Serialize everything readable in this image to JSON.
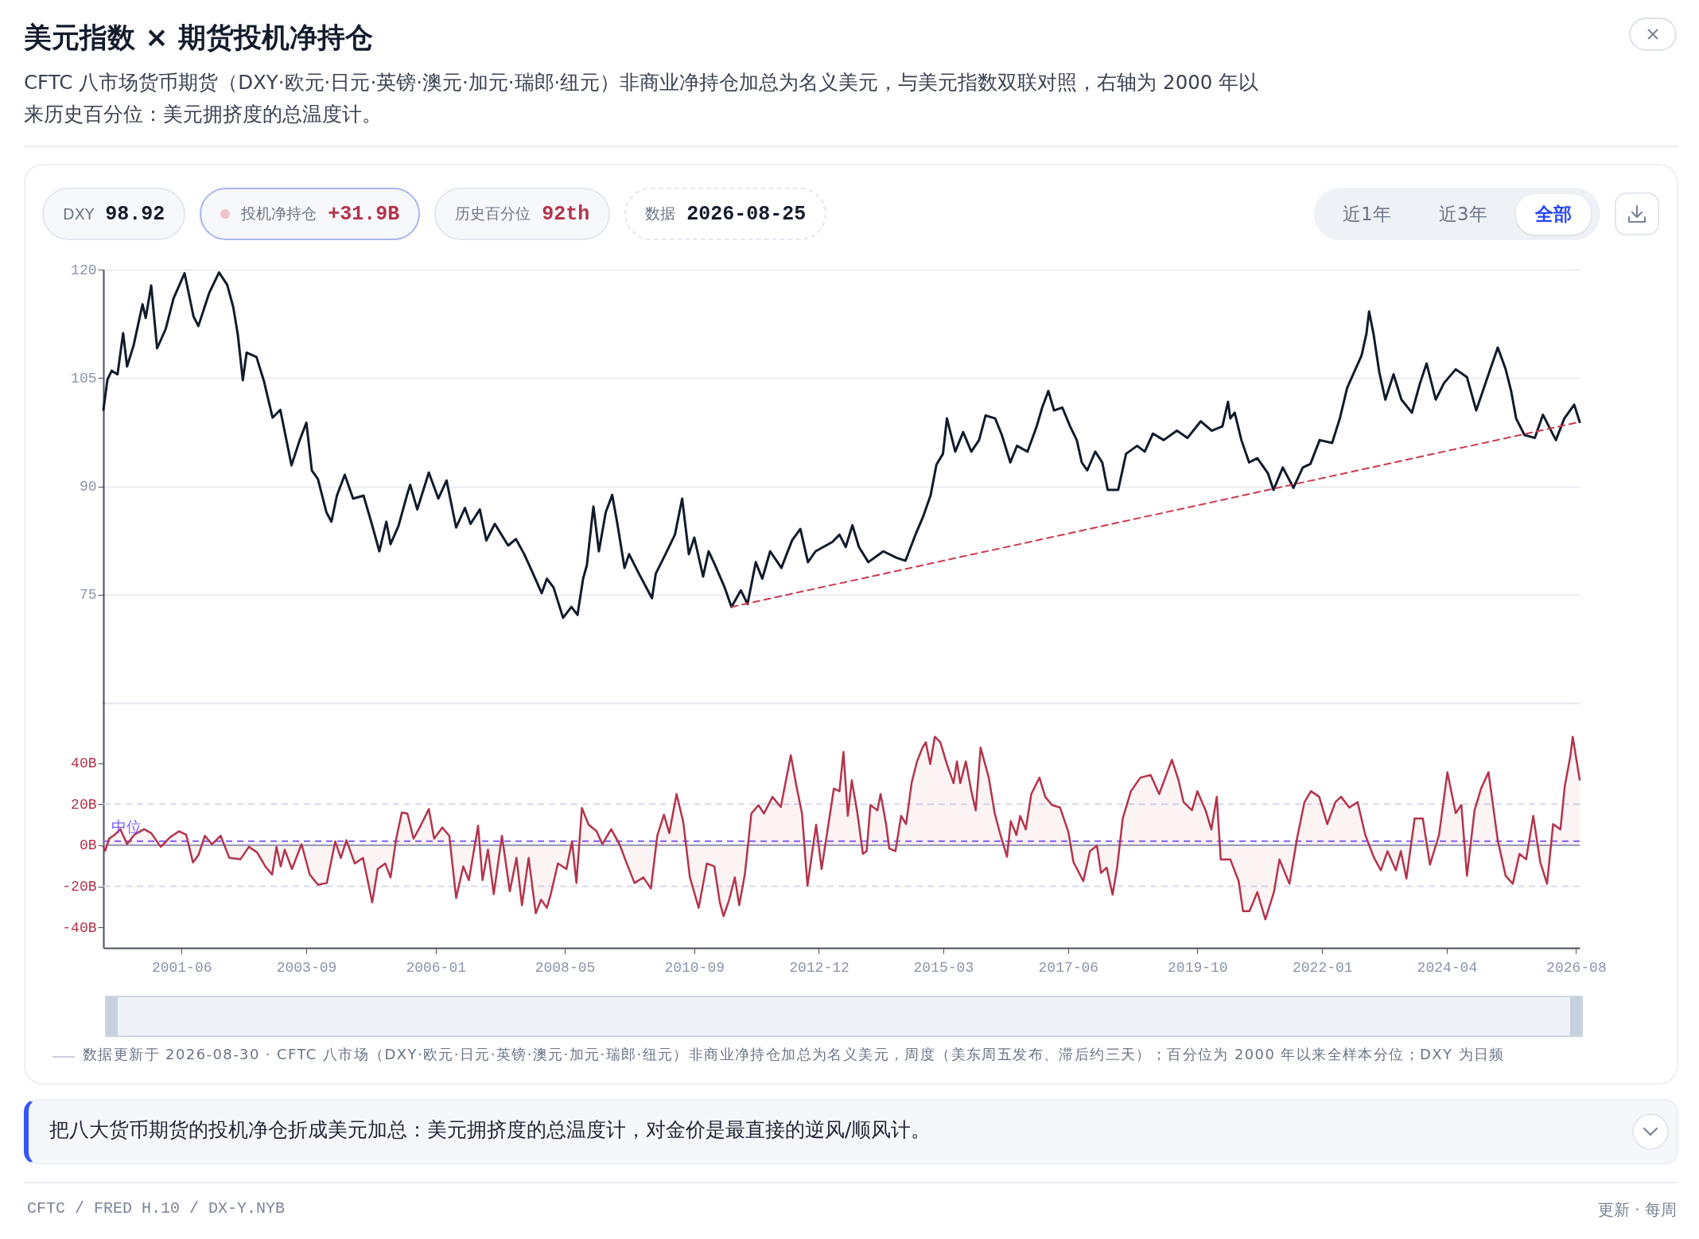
{
  "chart_data": [
    {
      "type": "line",
      "title": "美元指数 × 期货投机净持仓",
      "subtitle": "CFTC 八市场货币期货（DXY·欧元·日元·英镑·澳元·加元·瑞郎·纽元）非商业净持仓加总为名义美元，与美元指数双联对照，右轴为 2000 年以来历史百分位：美元拥挤度的总温度计。",
      "annotations": [
        "DXY 98.92",
        "投机净持仓 +31.9B",
        "历史百分位 92th",
        "数据 2026-08-25",
        "近1年",
        "近3年",
        "全部"
      ],
      "xlim": [
        "2000-01-03",
        "2026-08-25"
      ],
      "ylim": [
        60,
        120
      ],
      "yticks": [
        75,
        90,
        105,
        120
      ],
      "grid": "y",
      "tick_labels": "y",
      "series": [
        {
          "color": "#111b2b",
          "x": [
            "2000-01-03",
            "2000-01-30",
            "2000-02-27",
            "2000-04-05",
            "2000-05-12",
            "2000-06-07",
            "2000-07-20",
            "2000-09-17",
            "2000-10-08",
            "2000-11-13",
            "2000-12-22",
            "2001-02-17",
            "2001-04-09",
            "2001-06-21",
            "2001-08-19",
            "2001-09-20",
            "2001-12-01",
            "2002-02-03",
            "2002-03-29",
            "2002-05-08",
            "2002-06-07",
            "2002-07-10",
            "2002-08-04",
            "2002-10-08",
            "2002-11-27",
            "2003-01-22",
            "2003-03-14",
            "2003-05-27",
            "2003-07-20",
            "2003-09-02",
            "2003-10-08",
            "2003-11-17",
            "2004-01-12",
            "2004-02-14",
            "2004-03-21",
            "2004-05-12",
            "2004-07-06",
            "2004-09-13",
            "2004-11-06",
            "2004-12-26",
            "2005-02-10",
            "2005-03-10",
            "2005-05-01",
            "2005-06-25",
            "2005-07-17",
            "2005-09-02",
            "2005-11-17",
            "2006-01-19",
            "2006-03-14",
            "2006-05-16",
            "2006-07-13",
            "2006-08-19",
            "2006-10-19",
            "2006-12-01",
            "2007-01-26",
            "2007-04-24",
            "2007-06-14",
            "2007-08-08",
            "2007-09-27",
            "2007-12-01",
            "2008-01-04",
            "2008-02-17",
            "2008-04-20",
            "2008-06-14",
            "2008-07-24",
            "2008-08-30",
            "2008-09-24",
            "2008-11-06",
            "2008-12-12",
            "2009-01-26",
            "2009-03-10",
            "2009-04-13",
            "2009-05-30",
            "2009-06-29",
            "2009-09-02",
            "2009-11-27",
            "2009-12-22",
            "2010-02-24",
            "2010-04-27",
            "2010-06-14",
            "2010-07-28",
            "2010-09-02",
            "2010-10-30",
            "2010-12-05",
            "2011-01-08",
            "2011-03-21",
            "2011-05-05",
            "2011-07-06",
            "2011-08-19",
            "2011-10-12",
            "2011-11-24",
            "2012-01-15",
            "2012-03-29",
            "2012-06-07",
            "2012-08-01",
            "2012-09-20",
            "2012-11-09",
            "2013-02-28",
            "2013-04-16",
            "2013-05-27",
            "2013-07-10",
            "2013-08-22",
            "2013-10-23",
            "2014-01-30",
            "2014-04-27",
            "2014-06-25",
            "2014-08-26",
            "2014-10-19",
            "2014-12-08",
            "2015-01-15",
            "2015-02-27",
            "2015-03-25",
            "2015-05-19",
            "2015-07-10",
            "2015-09-02",
            "2015-10-23",
            "2015-12-05",
            "2016-02-06",
            "2016-03-21",
            "2016-05-16",
            "2016-06-29",
            "2016-09-06",
            "2016-11-06",
            "2016-12-12",
            "2017-01-22",
            "2017-02-28",
            "2017-04-24",
            "2017-06-14",
            "2017-07-28",
            "2017-08-30",
            "2017-10-05",
            "2017-11-27",
            "2018-01-12",
            "2018-02-17",
            "2018-04-27",
            "2018-06-18",
            "2018-08-30",
            "2018-10-19",
            "2018-12-12",
            "2019-02-21",
            "2019-05-19",
            "2019-07-28",
            "2019-10-23",
            "2020-01-04",
            "2020-03-14",
            "2020-04-20",
            "2020-05-05",
            "2020-06-03",
            "2020-07-17",
            "2020-09-06",
            "2020-10-30",
            "2021-01-08",
            "2021-02-14",
            "2021-04-16",
            "2021-06-25",
            "2021-08-26",
            "2021-10-15",
            "2021-12-15",
            "2022-03-07",
            "2022-04-27",
            "2022-06-14",
            "2022-07-24",
            "2022-09-17",
            "2022-10-19",
            "2022-11-06",
            "2022-12-05",
            "2023-01-12",
            "2023-02-21",
            "2023-04-16",
            "2023-06-07",
            "2023-08-15",
            "2023-10-08",
            "2023-11-20",
            "2024-01-19",
            "2024-03-14",
            "2024-05-30",
            "2024-08-12",
            "2024-10-12",
            "2024-12-19",
            "2025-03-03",
            "2025-04-24",
            "2025-05-30",
            "2025-07-02",
            "2025-08-26",
            "2025-11-02",
            "2025-12-26",
            "2026-03-21",
            "2026-05-16",
            "2026-07-20",
            "2026-08-25"
          ],
          "values": [
            100.6,
            104.8,
            106,
            105.5,
            111.2,
            106.6,
            109.5,
            115.2,
            113.3,
            117.8,
            109.1,
            111.8,
            116,
            119.5,
            113.5,
            112.2,
            116.8,
            119.6,
            117.9,
            114.8,
            111,
            104.7,
            108.5,
            107.9,
            104.5,
            99.5,
            100.6,
            92.9,
            96.4,
            98.8,
            92.2,
            91,
            86.4,
            85.1,
            88.7,
            91.6,
            88.3,
            88.7,
            84.8,
            81,
            85.1,
            82,
            84.5,
            88.7,
            90.2,
            86.8,
            91.9,
            88.3,
            90.8,
            84.3,
            87,
            84.8,
            86.8,
            82.5,
            84.8,
            81.8,
            82.7,
            80.6,
            78.3,
            75.2,
            77.2,
            76,
            71.8,
            73.3,
            72.2,
            77.2,
            79.1,
            87.2,
            81,
            86.4,
            88.8,
            84.8,
            78.7,
            80.6,
            77.9,
            74.5,
            77.9,
            80.6,
            83.3,
            88.3,
            80.6,
            82.9,
            77.5,
            81,
            79.5,
            76,
            73.3,
            75.6,
            73.7,
            79.5,
            77.2,
            81,
            78.7,
            82.5,
            84.1,
            79.5,
            81,
            82.3,
            83.3,
            81.6,
            84.6,
            81.6,
            79.5,
            81,
            80.1,
            79.7,
            83.1,
            85.8,
            88.8,
            93,
            94.5,
            99.4,
            94.8,
            97.5,
            94.8,
            96.4,
            99.8,
            99.4,
            97.1,
            93.3,
            95.6,
            94.8,
            98.3,
            100.9,
            103.2,
            100.5,
            100.9,
            98.3,
            96.4,
            93.3,
            92.2,
            94.8,
            93.3,
            89.5,
            89.5,
            94.5,
            95.6,
            94.8,
            97.3,
            96.4,
            97.7,
            96.7,
            99,
            97.7,
            98.3,
            101.7,
            99.4,
            100.2,
            96.4,
            93.3,
            93.9,
            91.8,
            89.5,
            92.6,
            89.8,
            92.6,
            93.1,
            96.4,
            96,
            99.4,
            103.6,
            105.5,
            108.1,
            111.1,
            114.2,
            111.1,
            105.8,
            102,
            105.5,
            102,
            100.2,
            104.3,
            107,
            102,
            104.3,
            106.2,
            105.1,
            100.5,
            104.7,
            109.2,
            106.2,
            103.2,
            99.4,
            97.1,
            96.7,
            99.9,
            96.4,
            99.4,
            101.3,
            98.9
          ]
        },
        {
          "type": "line",
          "color": "#cc3a4f",
          "line_style": "dashed",
          "x": [
            "2011-05-05",
            "2026-08-25"
          ],
          "values": [
            73.3,
            98.9
          ]
        }
      ]
    },
    {
      "type": "area",
      "annotations": [
        "数据更新于 2026-08-30 · CFTC 八市场（DXY·欧元·日元·英镑·澳元·加元·瑞郎·纽元）非商业净持仓加总为名义美元，周度（美东周五发布、滞后约三天）；百分位为 2000 年以来全样本分位；DXY 为日频",
        "把八大货币期货的投机净仓折成美元加总：美元拥挤度的总温度计，对金价是最直接的逆风/顺风计。",
        "CFTC / FRED H.10 / DX-Y.NYB",
        "更新 · 每周"
      ],
      "xlim": [
        "2000-01-03",
        "2026-08-25"
      ],
      "xticks": [
        "2001-06",
        "2003-09",
        "2006-01",
        "2008-05",
        "2010-09",
        "2012-12",
        "2015-03",
        "2017-06",
        "2019-10",
        "2022-01",
        "2024-04",
        "2026-08"
      ],
      "ylim": [
        -50,
        70
      ],
      "yticks": [
        {
          "value": -40,
          "label": "-40B"
        },
        {
          "value": -20,
          "label": "-20B"
        },
        {
          "value": 0,
          "label": "0B"
        },
        {
          "value": 20,
          "label": "20B"
        },
        {
          "value": 40,
          "label": "40B"
        }
      ],
      "ref_lines": [
        {
          "axis": "y",
          "value": 20,
          "color": "#d6d9ee",
          "line_style": "dashed"
        },
        {
          "axis": "y",
          "value": -20,
          "color": "#d6d9ee",
          "line_style": "dashed"
        },
        {
          "axis": "y",
          "value": 0,
          "color": "#8e97b3",
          "line_style": "solid"
        },
        {
          "axis": "y",
          "value": 2,
          "label": "中位",
          "color": "#7c5cff",
          "line_style": "dashed"
        }
      ],
      "x": [
        "2000-01-03",
        "2000-01-15",
        "2000-02-10",
        "2000-03-17",
        "2000-04-24",
        "2000-06-07",
        "2000-07-24",
        "2000-09-27",
        "2000-11-13",
        "2001-01-15",
        "2001-03-21",
        "2001-05-16",
        "2001-07-02",
        "2001-08-15",
        "2001-09-20",
        "2001-11-02",
        "2001-12-19",
        "2002-02-14",
        "2002-04-12",
        "2002-06-25",
        "2002-08-19",
        "2002-10-12",
        "2002-12-05",
        "2003-01-19",
        "2003-02-17",
        "2003-03-17",
        "2003-04-12",
        "2003-05-30",
        "2003-08-01",
        "2003-09-24",
        "2003-11-17",
        "2004-01-15",
        "2004-03-10",
        "2004-04-16",
        "2004-05-23",
        "2004-07-17",
        "2004-09-09",
        "2004-11-09",
        "2004-12-15",
        "2005-02-03",
        "2005-03-10",
        "2005-04-16",
        "2005-05-23",
        "2005-06-29",
        "2005-08-08",
        "2005-09-24",
        "2005-11-17",
        "2005-12-22",
        "2006-02-14",
        "2006-04-01",
        "2006-05-16",
        "2006-07-02",
        "2006-08-08",
        "2006-10-08",
        "2006-11-06",
        "2006-12-12",
        "2007-01-19",
        "2007-03-14",
        "2007-05-05",
        "2007-06-18",
        "2007-07-24",
        "2007-09-06",
        "2007-10-23",
        "2007-11-27",
        "2008-01-04",
        "2008-01-30",
        "2008-03-17",
        "2008-05-12",
        "2008-06-18",
        "2008-07-17",
        "2008-08-22",
        "2008-10-05",
        "2008-11-27",
        "2009-01-04",
        "2009-03-03",
        "2009-04-27",
        "2009-06-14",
        "2009-08-04",
        "2009-10-01",
        "2009-11-20",
        "2010-01-01",
        "2010-02-14",
        "2010-03-21",
        "2010-05-08",
        "2010-06-21",
        "2010-08-04",
        "2010-10-01",
        "2010-11-24",
        "2011-01-12",
        "2011-02-17",
        "2011-03-14",
        "2011-04-20",
        "2011-05-27",
        "2011-06-25",
        "2011-08-01",
        "2011-09-13",
        "2011-10-30",
        "2011-12-05",
        "2012-01-30",
        "2012-03-25",
        "2012-05-30",
        "2012-07-06",
        "2012-08-12",
        "2012-09-17",
        "2012-11-13",
        "2012-12-19",
        "2013-03-10",
        "2013-04-16",
        "2013-05-12",
        "2013-06-10",
        "2013-07-06",
        "2013-08-12",
        "2013-09-17",
        "2013-10-12",
        "2013-11-06",
        "2013-12-22",
        "2014-01-12",
        "2014-02-17",
        "2014-03-10",
        "2014-04-20",
        "2014-05-27",
        "2014-06-29",
        "2014-08-04",
        "2014-09-09",
        "2014-10-15",
        "2014-11-06",
        "2014-12-05",
        "2015-01-04",
        "2015-02-10",
        "2015-03-25",
        "2015-05-08",
        "2015-05-30",
        "2015-06-21",
        "2015-07-28",
        "2015-09-02",
        "2015-10-01",
        "2015-11-02",
        "2015-12-26",
        "2016-02-03",
        "2016-03-07",
        "2016-04-24",
        "2016-05-19",
        "2016-06-25",
        "2016-07-20",
        "2016-08-26",
        "2016-10-01",
        "2016-11-24",
        "2017-01-01",
        "2017-02-14",
        "2017-04-09",
        "2017-06-03",
        "2017-07-06",
        "2017-09-09",
        "2017-10-23",
        "2017-12-08",
        "2018-01-04",
        "2018-02-10",
        "2018-03-21",
        "2018-04-20",
        "2018-05-27",
        "2018-07-20",
        "2018-09-20",
        "2018-11-27",
        "2019-01-22",
        "2019-04-16",
        "2019-05-30",
        "2019-07-02",
        "2019-08-26",
        "2019-10-01",
        "2019-11-24",
        "2020-01-01",
        "2020-02-06",
        "2020-03-03",
        "2020-05-05",
        "2020-06-29",
        "2020-07-28",
        "2020-09-09",
        "2020-10-30",
        "2020-12-22",
        "2021-02-17",
        "2021-03-25",
        "2021-05-30",
        "2021-07-20",
        "2021-09-06",
        "2021-10-19",
        "2021-12-12",
        "2022-02-03",
        "2022-03-29",
        "2022-05-05",
        "2022-06-29",
        "2022-08-22",
        "2022-10-12",
        "2022-12-05",
        "2023-01-22",
        "2023-03-07",
        "2023-05-01",
        "2023-06-03",
        "2023-07-10",
        "2023-09-02",
        "2023-10-26",
        "2023-12-12",
        "2024-02-10",
        "2024-04-05",
        "2024-05-30",
        "2024-07-06",
        "2024-08-12",
        "2024-10-01",
        "2024-11-13",
        "2025-01-01",
        "2025-03-03",
        "2025-04-24",
        "2025-06-10",
        "2025-07-24",
        "2025-09-06",
        "2025-10-23",
        "2025-12-08",
        "2026-01-22",
        "2026-03-03",
        "2026-04-20",
        "2026-05-19",
        "2026-06-25",
        "2026-07-10",
        "2026-08-25"
      ],
      "series": [
        {
          "color": "#b3344c",
          "values": [
            -0.8,
            -2.7,
            3.2,
            5.1,
            7.8,
            0.5,
            5.1,
            7.8,
            5.9,
            -0.8,
            4.1,
            6.8,
            5.1,
            -8.4,
            -4.9,
            4.6,
            0.5,
            4.6,
            -6.2,
            -6.8,
            -0.8,
            -3.5,
            -10.3,
            -14.3,
            -0.8,
            -10.3,
            -2.2,
            -11.6,
            0.5,
            -14.3,
            -19.2,
            -18.4,
            1.9,
            -6.2,
            2.4,
            -8.9,
            -6.2,
            -27.8,
            -11.6,
            -8.9,
            -15.7,
            3.2,
            15.9,
            15.4,
            3.2,
            9.5,
            17.6,
            3.2,
            8.6,
            4.6,
            -25.7,
            -10.3,
            -17,
            9.5,
            -17,
            -2.2,
            -23.8,
            4.6,
            -22.4,
            -6.2,
            -29.2,
            -6.2,
            -33.2,
            -26.5,
            -30.5,
            -23.8,
            -8.9,
            -11.6,
            1.9,
            -18.4,
            18.1,
            10,
            6.8,
            0.5,
            7.8,
            0.5,
            -8.9,
            -18.4,
            -15.7,
            -21.1,
            4.6,
            14.9,
            5.9,
            24.9,
            11.4,
            -15.7,
            -30.5,
            -8.9,
            -10.3,
            -27.8,
            -34.6,
            -26.5,
            -15.7,
            -29.2,
            -14.3,
            15.4,
            19.5,
            15.4,
            23.5,
            18.6,
            43.8,
            28.9,
            15.4,
            -19.7,
            10,
            -11.6,
            27.6,
            26.3,
            45.4,
            14.3,
            31.6,
            15.6,
            -4.2,
            -2.9,
            19.6,
            17,
            24.9,
            10.3,
            -1.6,
            -2.9,
            14.3,
            10.3,
            30.2,
            40.8,
            47.5,
            50.1,
            39.5,
            52.8,
            50.1,
            39.5,
            30.2,
            40.8,
            30.2,
            40.8,
            26.3,
            17,
            47.5,
            32.9,
            15.6,
            6.4,
            -5.6,
            11.7,
            5,
            14.3,
            7.7,
            24.9,
            32.9,
            23.6,
            19.6,
            18.3,
            6.4,
            -8.2,
            -17.5,
            -2.9,
            -0.3,
            -13.5,
            -10.9,
            -24.1,
            -10.9,
            13,
            26.3,
            32.9,
            34.2,
            24.9,
            41.6,
            31.6,
            21,
            17,
            26.3,
            17,
            7.7,
            23.6,
            -6.9,
            -6.9,
            -17.5,
            -32.1,
            -32.1,
            -22.8,
            -36.1,
            -22.8,
            -6.9,
            -18.8,
            3.7,
            21,
            26.3,
            23.6,
            10.3,
            21,
            23.6,
            18.3,
            21,
            5,
            -5.6,
            -12.2,
            -2.9,
            -12.2,
            -2.9,
            -16.2,
            13,
            13,
            -9.5,
            5,
            35.5,
            15.6,
            19.6,
            -14.9,
            17,
            27.6,
            35.5,
            2.4,
            -14.9,
            -18.8,
            -4.2,
            -6.9,
            14.3,
            -8.2,
            -18.8,
            10.3,
            7.7,
            28.9,
            43.5,
            52.8,
            31.9
          ]
        }
      ]
    }
  ]
}
